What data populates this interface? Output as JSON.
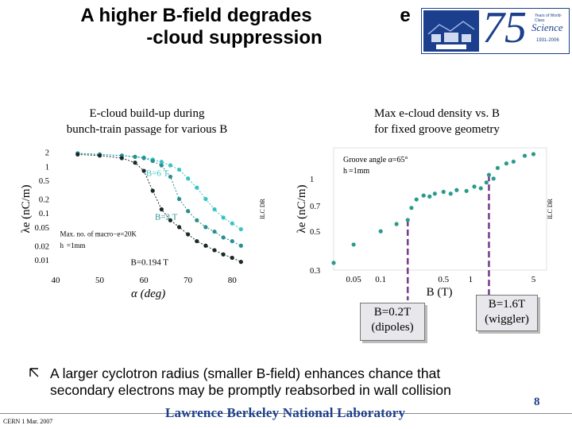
{
  "slide": {
    "title_line1": "A higher B-field degrades",
    "title_e": "e",
    "title_line2": "-cloud suppression",
    "page_number": "8",
    "footer_left": "CERN  1 Mar. 2007",
    "footer_lab": "Lawrence Berkeley National Laboratory",
    "bullet_icon": "corner-arrow-icon",
    "bullet_text_line1": "A larger cyclotron radius (smaller B-field) enhances chance that",
    "bullet_text_line2": "secondary electrons may be promptly reabsorbed in wall collision"
  },
  "logo": {
    "big_text": "75",
    "line1": "Years of World-Class",
    "line2": "Science",
    "line3": "1931-2006",
    "accent": "#1b3f8c"
  },
  "left_panel": {
    "caption_line1": "E-cloud build-up during",
    "caption_line2": "bunch-train passage for various B"
  },
  "right_panel": {
    "caption_line1": "Max e-cloud density vs. B",
    "caption_line2": "for fixed groove geometry"
  },
  "callouts": {
    "dipoles_line1": "B=0.2T",
    "dipoles_line2": "(dipoles)",
    "wiggler_line1": "B=1.6T",
    "wiggler_line2": "(wiggler)"
  },
  "chart_data": [
    {
      "type": "scatter",
      "title": "",
      "xlabel": "α (deg)",
      "ylabel": "λe (nC/m)",
      "side_label": "ILC DR",
      "x_ticks": [
        "40",
        "50",
        "60",
        "70",
        "80"
      ],
      "y_ticks": [
        "2",
        "1",
        "0.5",
        "0.2",
        "0.1",
        "0.05",
        "0.02",
        "0.01"
      ],
      "xlim": [
        40,
        85
      ],
      "ylim": [
        0.006,
        2.5
      ],
      "log_y": true,
      "annotations": [
        "B=6 T",
        "B=2 T",
        "B=0.194 T",
        "Max. no. of macro−e=20K",
        "h",
        "=1mm"
      ],
      "colors": {
        "B=6 T": "#37c3c3",
        "B=2 T": "#2a8f8f",
        "B=0.194 T": "#1a2a2a"
      },
      "series": [
        {
          "name": "B=6 T",
          "x": [
            45,
            50,
            55,
            58,
            60,
            62,
            64,
            66,
            68,
            70,
            72,
            74,
            76,
            78,
            80,
            82
          ],
          "y": [
            1.9,
            1.8,
            1.7,
            1.6,
            1.55,
            1.4,
            1.25,
            1.05,
            0.85,
            0.55,
            0.35,
            0.2,
            0.12,
            0.08,
            0.06,
            0.045
          ]
        },
        {
          "name": "B=2 T",
          "x": [
            45,
            50,
            55,
            58,
            60,
            62,
            64,
            66,
            68,
            70,
            72,
            74,
            76,
            78,
            80,
            82
          ],
          "y": [
            1.9,
            1.8,
            1.7,
            1.6,
            1.5,
            1.3,
            1.05,
            0.6,
            0.2,
            0.11,
            0.07,
            0.05,
            0.04,
            0.03,
            0.025,
            0.02
          ]
        },
        {
          "name": "B=0.194 T",
          "x": [
            45,
            50,
            55,
            58,
            60,
            62,
            64,
            66,
            68,
            70,
            72,
            74,
            76,
            78,
            80,
            82
          ],
          "y": [
            1.8,
            1.7,
            1.5,
            1.2,
            0.8,
            0.3,
            0.12,
            0.07,
            0.05,
            0.035,
            0.025,
            0.02,
            0.016,
            0.013,
            0.011,
            0.009
          ]
        }
      ]
    },
    {
      "type": "scatter",
      "title": "",
      "xlabel": "B (T)",
      "ylabel": "λe (nC/m)",
      "side_label": "ILC DR",
      "x_ticks": [
        "0.05",
        "0.1",
        "0.5",
        "1",
        "5"
      ],
      "y_ticks": [
        "1",
        "0.7",
        "0.5",
        "0.3"
      ],
      "xlim": [
        0.03,
        7
      ],
      "ylim": [
        0.3,
        1.5
      ],
      "log_x": true,
      "log_y": true,
      "annotations": [
        "Groove angle α=65°",
        "h",
        "=1mm"
      ],
      "color": "#2a9a8a",
      "series": [
        {
          "name": "",
          "x": [
            0.03,
            0.05,
            0.1,
            0.15,
            0.2,
            0.22,
            0.25,
            0.3,
            0.35,
            0.4,
            0.5,
            0.6,
            0.7,
            0.9,
            1.1,
            1.3,
            1.5,
            1.6,
            1.8,
            2,
            2.5,
            3,
            4,
            5
          ],
          "y": [
            0.33,
            0.42,
            0.5,
            0.55,
            0.58,
            0.68,
            0.76,
            0.8,
            0.79,
            0.82,
            0.84,
            0.82,
            0.86,
            0.85,
            0.9,
            0.88,
            0.95,
            1.05,
            1.0,
            1.15,
            1.22,
            1.25,
            1.35,
            1.38
          ]
        }
      ]
    }
  ]
}
